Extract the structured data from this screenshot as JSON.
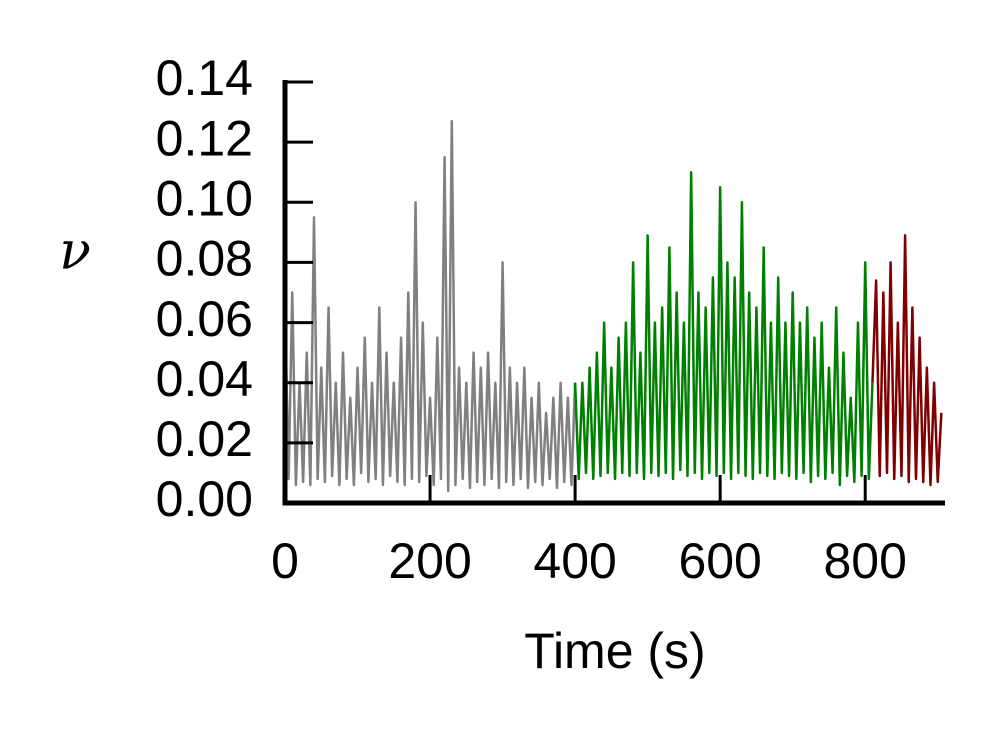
{
  "chart_data": {
    "type": "line",
    "xlabel": "Time (s)",
    "ylabel": "ν",
    "xlim": [
      0,
      910
    ],
    "ylim": [
      0,
      0.14
    ],
    "xticks": [
      0,
      200,
      400,
      600,
      800
    ],
    "yticks": [
      {
        "value": 0,
        "label": "0.00"
      },
      {
        "value": 0.02,
        "label": "0.02"
      },
      {
        "value": 0.04,
        "label": "0.04"
      },
      {
        "value": 0.06,
        "label": "0.06"
      },
      {
        "value": 0.08,
        "label": "0.08"
      },
      {
        "value": 0.1,
        "label": "0.10"
      },
      {
        "value": 0.12,
        "label": "0.12"
      },
      {
        "value": 0.14,
        "label": "0.14"
      }
    ],
    "series": [
      {
        "color": "#808080",
        "x": [
          0,
          5,
          10,
          15,
          20,
          25,
          30,
          35,
          40,
          45,
          50,
          55,
          60,
          65,
          70,
          75,
          80,
          85,
          90,
          95,
          100,
          105,
          110,
          115,
          120,
          125,
          130,
          135,
          140,
          145,
          150,
          155,
          160,
          165,
          170,
          175,
          180,
          185,
          190,
          195,
          200,
          205,
          210,
          215,
          220,
          225,
          230,
          235,
          240,
          245,
          250,
          255,
          260,
          265,
          270,
          275,
          280,
          285,
          290,
          295,
          300,
          305,
          310,
          315,
          320,
          325,
          330,
          335,
          340,
          345,
          350,
          355,
          360,
          365,
          370,
          375,
          380,
          385,
          390,
          395,
          400
        ],
        "values": [
          0.065,
          0.008,
          0.07,
          0.006,
          0.04,
          0.007,
          0.05,
          0.006,
          0.095,
          0.008,
          0.045,
          0.007,
          0.065,
          0.009,
          0.04,
          0.006,
          0.05,
          0.008,
          0.035,
          0.006,
          0.045,
          0.01,
          0.055,
          0.007,
          0.04,
          0.008,
          0.065,
          0.006,
          0.05,
          0.009,
          0.04,
          0.007,
          0.055,
          0.006,
          0.07,
          0.008,
          0.1,
          0.007,
          0.06,
          0.009,
          0.035,
          0.006,
          0.055,
          0.008,
          0.115,
          0.004,
          0.127,
          0.006,
          0.045,
          0.008,
          0.04,
          0.005,
          0.05,
          0.007,
          0.045,
          0.006,
          0.05,
          0.008,
          0.04,
          0.005,
          0.08,
          0.007,
          0.045,
          0.006,
          0.04,
          0.008,
          0.045,
          0.005,
          0.035,
          0.007,
          0.04,
          0.006,
          0.03,
          0.008,
          0.035,
          0.005,
          0.04,
          0.007,
          0.035,
          0.006,
          0.04
        ]
      },
      {
        "color": "#008000",
        "x": [
          400,
          405,
          410,
          415,
          420,
          425,
          430,
          435,
          440,
          445,
          450,
          455,
          460,
          465,
          470,
          475,
          480,
          485,
          490,
          495,
          500,
          505,
          510,
          515,
          520,
          525,
          530,
          535,
          540,
          545,
          550,
          555,
          560,
          565,
          570,
          575,
          580,
          585,
          590,
          595,
          600,
          605,
          610,
          615,
          620,
          625,
          630,
          635,
          640,
          645,
          650,
          655,
          660,
          665,
          670,
          675,
          680,
          685,
          690,
          695,
          700,
          705,
          710,
          715,
          720,
          725,
          730,
          735,
          740,
          745,
          750,
          755,
          760,
          765,
          770,
          775,
          780,
          785,
          790,
          795,
          800,
          805,
          810
        ],
        "values": [
          0.04,
          0.008,
          0.04,
          0.01,
          0.045,
          0.008,
          0.05,
          0.009,
          0.06,
          0.01,
          0.045,
          0.008,
          0.055,
          0.01,
          0.06,
          0.009,
          0.08,
          0.01,
          0.05,
          0.008,
          0.089,
          0.01,
          0.06,
          0.009,
          0.065,
          0.01,
          0.085,
          0.008,
          0.07,
          0.011,
          0.06,
          0.009,
          0.11,
          0.01,
          0.07,
          0.008,
          0.065,
          0.01,
          0.075,
          0.009,
          0.105,
          0.01,
          0.08,
          0.008,
          0.075,
          0.01,
          0.1,
          0.009,
          0.07,
          0.008,
          0.065,
          0.01,
          0.085,
          0.009,
          0.06,
          0.008,
          0.075,
          0.01,
          0.06,
          0.009,
          0.07,
          0.008,
          0.06,
          0.01,
          0.065,
          0.007,
          0.055,
          0.009,
          0.06,
          0.008,
          0.045,
          0.01,
          0.065,
          0.006,
          0.05,
          0.009,
          0.035,
          0.007,
          0.06,
          0.009,
          0.08,
          0.008,
          0.04
        ]
      },
      {
        "color": "#800000",
        "x": [
          810,
          815,
          820,
          825,
          830,
          835,
          840,
          845,
          850,
          855,
          860,
          865,
          870,
          875,
          880,
          885,
          890,
          895,
          900,
          905
        ],
        "values": [
          0.04,
          0.074,
          0.009,
          0.07,
          0.01,
          0.08,
          0.008,
          0.06,
          0.009,
          0.089,
          0.007,
          0.065,
          0.008,
          0.055,
          0.007,
          0.045,
          0.006,
          0.04,
          0.007,
          0.03
        ]
      }
    ]
  }
}
